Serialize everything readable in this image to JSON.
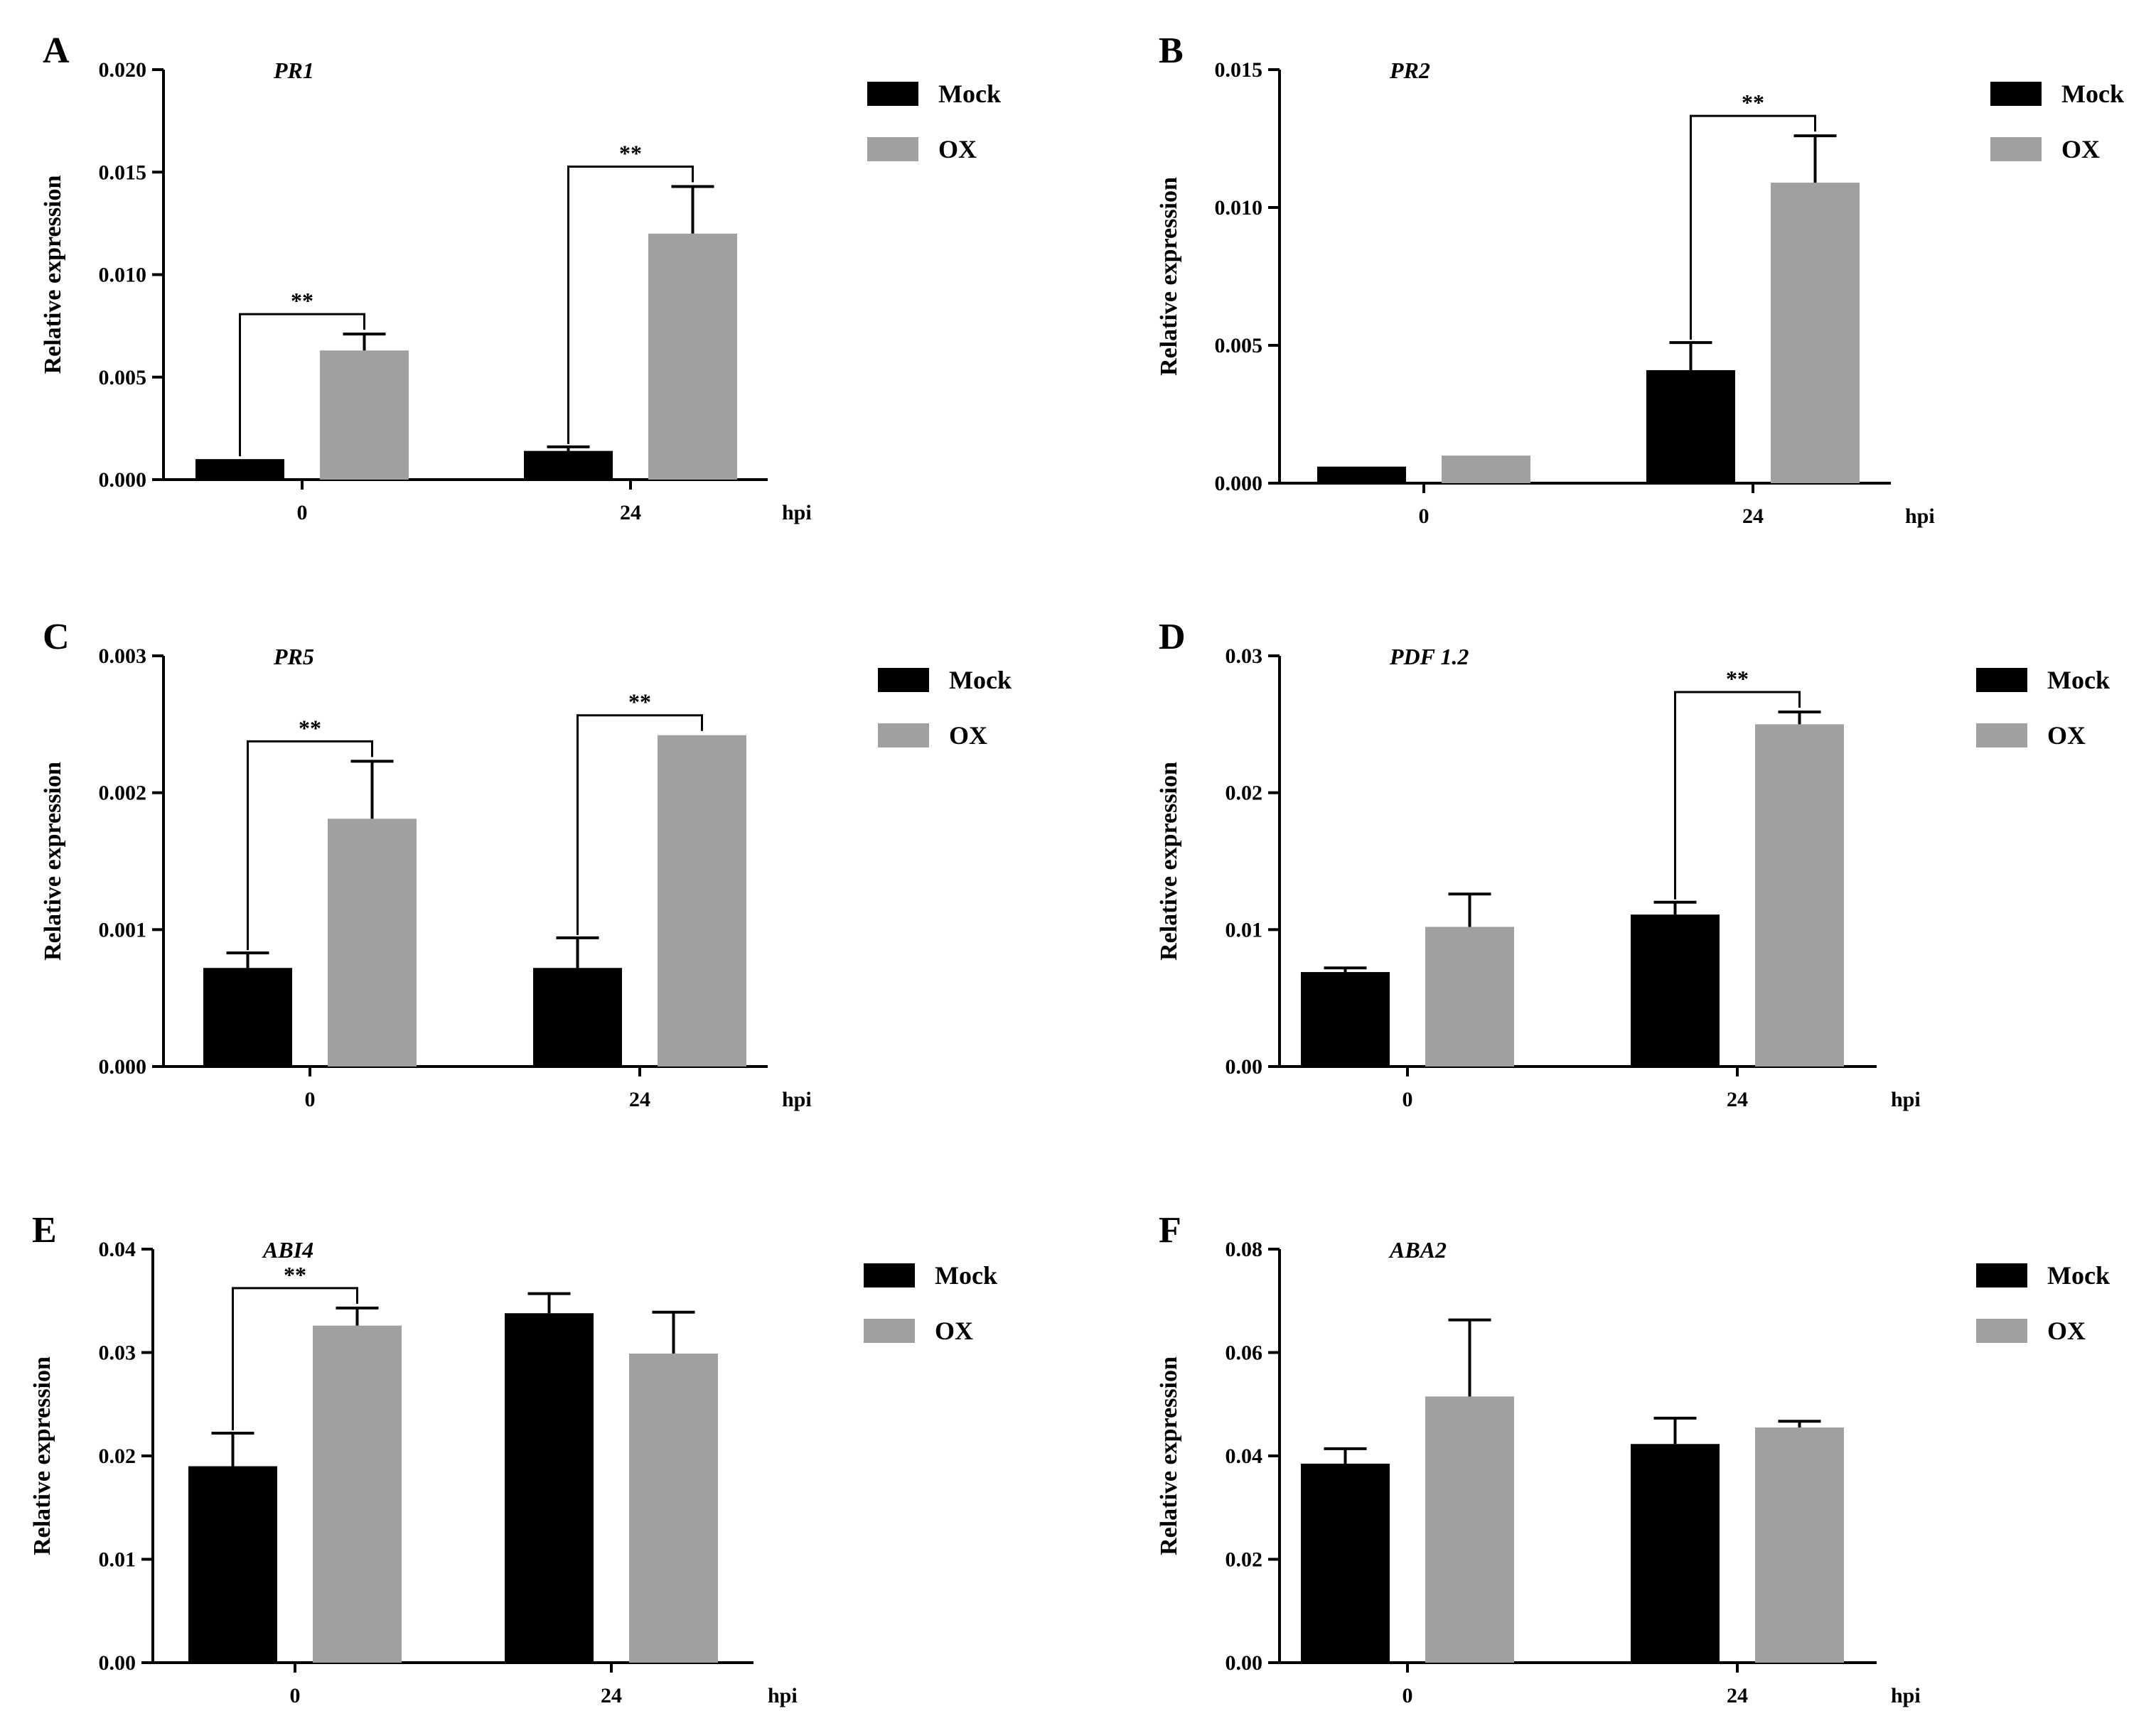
{
  "chart_data": [
    {
      "panel": "A",
      "type": "bar",
      "title": "PR1",
      "ylabel": "Relative expression",
      "xlabel": "hpi",
      "categories": [
        "0",
        "24"
      ],
      "ylim": [
        0,
        0.02
      ],
      "yticks": [
        "0.000",
        "0.005",
        "0.010",
        "0.015",
        "0.020"
      ],
      "series": [
        {
          "name": "Mock",
          "color": "#000000",
          "values": [
            0.001,
            0.0014
          ],
          "errors": [
            0.0,
            0.0002
          ]
        },
        {
          "name": "OX",
          "color": "#a0a0a3",
          "values": [
            0.0063,
            0.012
          ],
          "errors": [
            0.0008,
            0.0023
          ]
        }
      ],
      "significance": [
        {
          "category": "0",
          "label": "**"
        },
        {
          "category": "24",
          "label": "**"
        }
      ]
    },
    {
      "panel": "B",
      "type": "bar",
      "title": "PR2",
      "ylabel": "Relative expression",
      "xlabel": "hpi",
      "categories": [
        "0",
        "24"
      ],
      "ylim": [
        0,
        0.015
      ],
      "yticks": [
        "0.000",
        "0.005",
        "0.010",
        "0.015"
      ],
      "series": [
        {
          "name": "Mock",
          "color": "#000000",
          "values": [
            0.0006,
            0.0041
          ],
          "errors": [
            0.0,
            0.001
          ]
        },
        {
          "name": "OX",
          "color": "#a0a0a3",
          "values": [
            0.001,
            0.0109
          ],
          "errors": [
            0.0,
            0.0017
          ]
        }
      ],
      "significance": [
        {
          "category": "24",
          "label": "**"
        }
      ]
    },
    {
      "panel": "C",
      "type": "bar",
      "title": "PR5",
      "ylabel": "Relative expression",
      "xlabel": "hpi",
      "categories": [
        "0",
        "24"
      ],
      "ylim": [
        0,
        0.003
      ],
      "yticks": [
        "0.000",
        "0.001",
        "0.002",
        "0.003"
      ],
      "series": [
        {
          "name": "Mock",
          "color": "#000000",
          "values": [
            0.00072,
            0.00072
          ],
          "errors": [
            0.00011,
            0.00022
          ]
        },
        {
          "name": "OX",
          "color": "#a0a0a3",
          "values": [
            0.00181,
            0.00242
          ],
          "errors": [
            0.00042,
            0.0
          ]
        }
      ],
      "significance": [
        {
          "category": "0",
          "label": "**"
        },
        {
          "category": "24",
          "label": "**"
        }
      ]
    },
    {
      "panel": "D",
      "type": "bar",
      "title": "PDF 1.2",
      "ylabel": "Relative expression",
      "xlabel": "hpi",
      "categories": [
        "0",
        "24"
      ],
      "ylim": [
        0,
        0.03
      ],
      "yticks": [
        "0.00",
        "0.01",
        "0.02",
        "0.03"
      ],
      "series": [
        {
          "name": "Mock",
          "color": "#000000",
          "values": [
            0.0069,
            0.0111
          ],
          "errors": [
            0.0003,
            0.0009
          ]
        },
        {
          "name": "OX",
          "color": "#a0a0a3",
          "values": [
            0.0102,
            0.025
          ],
          "errors": [
            0.0024,
            0.0009
          ]
        }
      ],
      "significance": [
        {
          "category": "24",
          "label": "**"
        }
      ]
    },
    {
      "panel": "E",
      "type": "bar",
      "title": "ABI4",
      "ylabel": "Relative expression",
      "xlabel": "hpi",
      "categories": [
        "0",
        "24"
      ],
      "ylim": [
        0,
        0.04
      ],
      "yticks": [
        "0.00",
        "0.01",
        "0.02",
        "0.03",
        "0.04"
      ],
      "series": [
        {
          "name": "Mock",
          "color": "#000000",
          "values": [
            0.019,
            0.0338
          ],
          "errors": [
            0.0032,
            0.0019
          ]
        },
        {
          "name": "OX",
          "color": "#a0a0a3",
          "values": [
            0.0326,
            0.0299
          ],
          "errors": [
            0.0017,
            0.004
          ]
        }
      ],
      "significance": [
        {
          "category": "0",
          "label": "**"
        }
      ]
    },
    {
      "panel": "F",
      "type": "bar",
      "title": "ABA2",
      "ylabel": "Relative expression",
      "xlabel": "hpi",
      "categories": [
        "0",
        "24"
      ],
      "ylim": [
        0,
        0.08
      ],
      "yticks": [
        "0.00",
        "0.02",
        "0.04",
        "0.06",
        "0.08"
      ],
      "series": [
        {
          "name": "Mock",
          "color": "#000000",
          "values": [
            0.0385,
            0.0423
          ],
          "errors": [
            0.0029,
            0.005
          ]
        },
        {
          "name": "OX",
          "color": "#a0a0a3",
          "values": [
            0.0515,
            0.0455
          ],
          "errors": [
            0.0148,
            0.0012
          ]
        }
      ],
      "significance": []
    }
  ]
}
